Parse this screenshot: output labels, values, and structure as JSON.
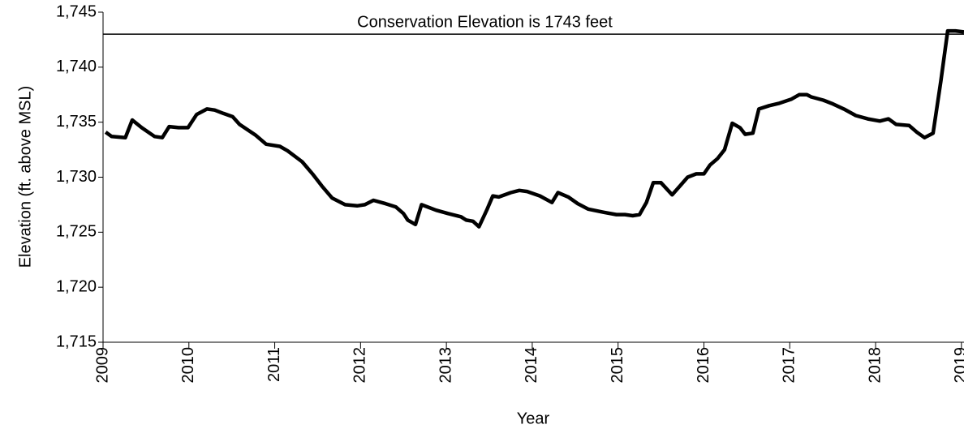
{
  "chart_data": {
    "type": "line",
    "x_label": "Year",
    "y_label": "Elevation (ft. above MSL)",
    "x": [
      2009.03,
      2009.1,
      2009.26,
      2009.34,
      2009.45,
      2009.6,
      2009.69,
      2009.77,
      2009.88,
      2009.99,
      2010.09,
      2010.21,
      2010.3,
      2010.4,
      2010.51,
      2010.59,
      2010.78,
      2010.9,
      2011.06,
      2011.15,
      2011.32,
      2011.44,
      2011.55,
      2011.67,
      2011.82,
      2011.96,
      2012.05,
      2012.15,
      2012.29,
      2012.41,
      2012.5,
      2012.55,
      2012.64,
      2012.71,
      2012.88,
      2013.02,
      2013.17,
      2013.23,
      2013.31,
      2013.38,
      2013.47,
      2013.54,
      2013.61,
      2013.75,
      2013.85,
      2013.94,
      2014.09,
      2014.23,
      2014.3,
      2014.42,
      2014.53,
      2014.65,
      2014.84,
      2014.98,
      2015.08,
      2015.17,
      2015.25,
      2015.33,
      2015.41,
      2015.5,
      2015.63,
      2015.72,
      2015.81,
      2015.91,
      2016.0,
      2016.07,
      2016.16,
      2016.24,
      2016.33,
      2016.42,
      2016.48,
      2016.57,
      2016.64,
      2016.76,
      2016.87,
      2017.02,
      2017.11,
      2017.2,
      2017.25,
      2017.39,
      2017.49,
      2017.63,
      2017.77,
      2017.91,
      2018.05,
      2018.15,
      2018.24,
      2018.39,
      2018.48,
      2018.57,
      2018.67,
      2018.76,
      2018.84,
      2018.93,
      2019.03
    ],
    "values": [
      1734.1,
      1733.7,
      1733.6,
      1735.2,
      1734.5,
      1733.7,
      1733.6,
      1734.6,
      1734.5,
      1734.5,
      1735.7,
      1736.2,
      1736.1,
      1735.8,
      1735.5,
      1734.8,
      1733.8,
      1733.0,
      1732.8,
      1732.4,
      1731.4,
      1730.3,
      1729.2,
      1728.1,
      1727.5,
      1727.4,
      1727.5,
      1727.9,
      1727.6,
      1727.3,
      1726.7,
      1726.1,
      1725.7,
      1727.5,
      1727.0,
      1726.7,
      1726.4,
      1726.1,
      1726.0,
      1725.5,
      1727.0,
      1728.3,
      1728.2,
      1728.6,
      1728.8,
      1728.7,
      1728.3,
      1727.7,
      1728.6,
      1728.2,
      1727.6,
      1727.1,
      1726.8,
      1726.6,
      1726.6,
      1726.5,
      1726.6,
      1727.7,
      1729.5,
      1729.5,
      1728.4,
      1729.2,
      1730.0,
      1730.3,
      1730.3,
      1731.1,
      1731.7,
      1732.5,
      1734.9,
      1734.5,
      1733.9,
      1734.0,
      1736.2,
      1736.5,
      1736.7,
      1737.1,
      1737.5,
      1737.5,
      1737.3,
      1737.0,
      1736.7,
      1736.2,
      1735.6,
      1735.3,
      1735.1,
      1735.3,
      1734.8,
      1734.7,
      1734.1,
      1733.6,
      1734.0,
      1738.7,
      1743.3,
      1743.3,
      1743.2
    ],
    "color": "#000000",
    "xlim": [
      2009,
      2019.03
    ],
    "xticks": [
      2009,
      2010,
      2011,
      2012,
      2013,
      2014,
      2015,
      2016,
      2017,
      2018,
      2019
    ],
    "ylim": [
      1715,
      1745
    ],
    "yticks": [
      {
        "value": 1715,
        "label": "1,715"
      },
      {
        "value": 1720,
        "label": "1,720"
      },
      {
        "value": 1725,
        "label": "1,725"
      },
      {
        "value": 1730,
        "label": "1,730"
      },
      {
        "value": 1735,
        "label": "1,735"
      },
      {
        "value": 1740,
        "label": "1,740"
      },
      {
        "value": 1745,
        "label": "1,745"
      }
    ],
    "reference_lines": [
      {
        "value": 1743,
        "label": "Conservation Elevation is 1743 feet"
      }
    ]
  }
}
